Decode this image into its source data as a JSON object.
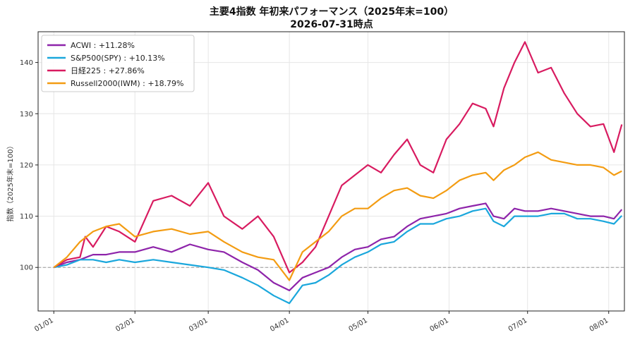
{
  "chart_data": {
    "type": "line",
    "title": "主要4指数 年初来パフォーマンス（2025年末=100）",
    "subtitle": "2026-07-31時点",
    "ylabel": "指数（2025年末=100）",
    "xlabel": "",
    "ylim": [
      91.5,
      146
    ],
    "yticks": [
      100,
      110,
      120,
      130,
      140
    ],
    "xticks": [
      "01/01",
      "02/01",
      "03/01",
      "04/01",
      "05/01",
      "06/01",
      "07/01",
      "08/01"
    ],
    "xlim_days": [
      -6,
      218
    ],
    "grid": true,
    "baseline": 100,
    "legend_position": "top-left",
    "series": [
      {
        "name": "ACWI",
        "legend_label": "ACWI : +11.28%",
        "color": "#8e24aa",
        "points": [
          [
            0,
            100
          ],
          [
            5,
            101
          ],
          [
            10,
            101.5
          ],
          [
            15,
            102.5
          ],
          [
            20,
            102.5
          ],
          [
            25,
            103
          ],
          [
            31,
            103
          ],
          [
            38,
            104
          ],
          [
            45,
            103
          ],
          [
            52,
            104.5
          ],
          [
            59,
            103.5
          ],
          [
            65,
            103
          ],
          [
            72,
            101
          ],
          [
            78,
            99.5
          ],
          [
            84,
            97
          ],
          [
            90,
            95.5
          ],
          [
            95,
            98
          ],
          [
            100,
            99
          ],
          [
            105,
            100
          ],
          [
            110,
            102
          ],
          [
            115,
            103.5
          ],
          [
            120,
            104
          ],
          [
            125,
            105.5
          ],
          [
            130,
            106
          ],
          [
            135,
            108
          ],
          [
            140,
            109.5
          ],
          [
            145,
            110
          ],
          [
            150,
            110.5
          ],
          [
            155,
            111.5
          ],
          [
            160,
            112
          ],
          [
            165,
            112.5
          ],
          [
            168,
            110
          ],
          [
            172,
            109.5
          ],
          [
            176,
            111.5
          ],
          [
            180,
            111
          ],
          [
            185,
            111
          ],
          [
            190,
            111.5
          ],
          [
            195,
            111
          ],
          [
            200,
            110.5
          ],
          [
            205,
            110
          ],
          [
            210,
            110
          ],
          [
            214,
            109.5
          ],
          [
            217,
            111.3
          ]
        ]
      },
      {
        "name": "S&P500(SPY)",
        "legend_label": "S&P500(SPY) : +10.13%",
        "color": "#1aa7dc",
        "points": [
          [
            0,
            100
          ],
          [
            5,
            100.5
          ],
          [
            10,
            101.5
          ],
          [
            15,
            101.5
          ],
          [
            20,
            101
          ],
          [
            25,
            101.5
          ],
          [
            31,
            101
          ],
          [
            38,
            101.5
          ],
          [
            45,
            101
          ],
          [
            52,
            100.5
          ],
          [
            59,
            100
          ],
          [
            65,
            99.5
          ],
          [
            72,
            98
          ],
          [
            78,
            96.5
          ],
          [
            84,
            94.5
          ],
          [
            90,
            93
          ],
          [
            95,
            96.5
          ],
          [
            100,
            97
          ],
          [
            105,
            98.5
          ],
          [
            110,
            100.5
          ],
          [
            115,
            102
          ],
          [
            120,
            103
          ],
          [
            125,
            104.5
          ],
          [
            130,
            105
          ],
          [
            135,
            107
          ],
          [
            140,
            108.5
          ],
          [
            145,
            108.5
          ],
          [
            150,
            109.5
          ],
          [
            155,
            110
          ],
          [
            160,
            111
          ],
          [
            165,
            111.5
          ],
          [
            168,
            109
          ],
          [
            172,
            108
          ],
          [
            176,
            110
          ],
          [
            180,
            110
          ],
          [
            185,
            110
          ],
          [
            190,
            110.5
          ],
          [
            195,
            110.5
          ],
          [
            200,
            109.5
          ],
          [
            205,
            109.5
          ],
          [
            210,
            109
          ],
          [
            214,
            108.5
          ],
          [
            217,
            110.1
          ]
        ]
      },
      {
        "name": "日経225",
        "legend_label": "日経225 : +27.86%",
        "color": "#d81b60",
        "points": [
          [
            0,
            100
          ],
          [
            5,
            101.5
          ],
          [
            10,
            102
          ],
          [
            12,
            106
          ],
          [
            15,
            104
          ],
          [
            20,
            108
          ],
          [
            25,
            107
          ],
          [
            31,
            105
          ],
          [
            38,
            113
          ],
          [
            45,
            114
          ],
          [
            52,
            112
          ],
          [
            59,
            116.5
          ],
          [
            65,
            110
          ],
          [
            72,
            107.5
          ],
          [
            78,
            110
          ],
          [
            84,
            106
          ],
          [
            90,
            99
          ],
          [
            95,
            101
          ],
          [
            100,
            104
          ],
          [
            105,
            110
          ],
          [
            110,
            116
          ],
          [
            115,
            118
          ],
          [
            120,
            120
          ],
          [
            125,
            118.5
          ],
          [
            130,
            122
          ],
          [
            135,
            125
          ],
          [
            140,
            120
          ],
          [
            145,
            118.5
          ],
          [
            150,
            125
          ],
          [
            155,
            128
          ],
          [
            160,
            132
          ],
          [
            165,
            131
          ],
          [
            168,
            127.5
          ],
          [
            172,
            135
          ],
          [
            176,
            140
          ],
          [
            180,
            144
          ],
          [
            185,
            138
          ],
          [
            190,
            139
          ],
          [
            195,
            134
          ],
          [
            200,
            130
          ],
          [
            205,
            127.5
          ],
          [
            210,
            128
          ],
          [
            214,
            122.5
          ],
          [
            217,
            127.9
          ]
        ]
      },
      {
        "name": "Russell2000(IWM)",
        "legend_label": "Russell2000(IWM) : +18.79%",
        "color": "#f39c12",
        "points": [
          [
            0,
            100
          ],
          [
            5,
            102
          ],
          [
            10,
            105
          ],
          [
            15,
            107
          ],
          [
            20,
            108
          ],
          [
            25,
            108.5
          ],
          [
            31,
            106
          ],
          [
            38,
            107
          ],
          [
            45,
            107.5
          ],
          [
            52,
            106.5
          ],
          [
            59,
            107
          ],
          [
            65,
            105
          ],
          [
            72,
            103
          ],
          [
            78,
            102
          ],
          [
            84,
            101.5
          ],
          [
            90,
            97.5
          ],
          [
            95,
            103
          ],
          [
            100,
            105
          ],
          [
            105,
            107
          ],
          [
            110,
            110
          ],
          [
            115,
            111.5
          ],
          [
            120,
            111.5
          ],
          [
            125,
            113.5
          ],
          [
            130,
            115
          ],
          [
            135,
            115.5
          ],
          [
            140,
            114
          ],
          [
            145,
            113.5
          ],
          [
            150,
            115
          ],
          [
            155,
            117
          ],
          [
            160,
            118
          ],
          [
            165,
            118.5
          ],
          [
            168,
            117
          ],
          [
            172,
            119
          ],
          [
            176,
            120
          ],
          [
            180,
            121.5
          ],
          [
            185,
            122.5
          ],
          [
            190,
            121
          ],
          [
            195,
            120.5
          ],
          [
            200,
            120
          ],
          [
            205,
            120
          ],
          [
            210,
            119.5
          ],
          [
            214,
            118
          ],
          [
            217,
            118.8
          ]
        ]
      }
    ]
  }
}
